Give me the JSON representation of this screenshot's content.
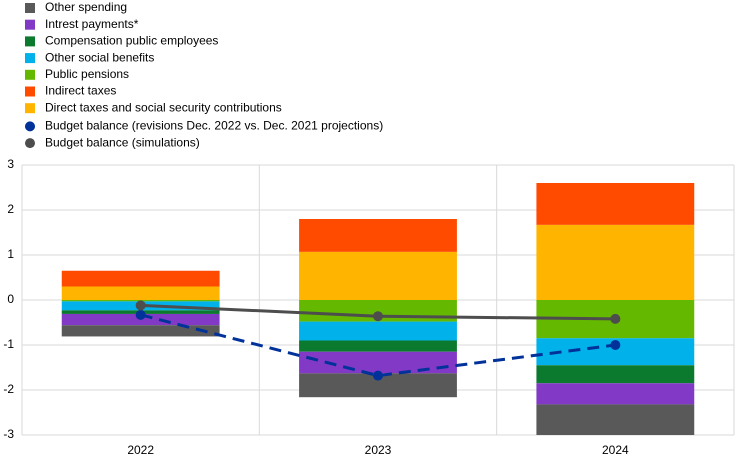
{
  "chart_data": {
    "type": "bar",
    "stacked": true,
    "categories": [
      "2022",
      "2023",
      "2024"
    ],
    "ylim": [
      -3,
      3
    ],
    "yticks": [
      -3,
      -2,
      -1,
      0,
      1,
      2,
      3
    ],
    "grid": true,
    "series": [
      {
        "name": "Other spending",
        "type": "bar",
        "color": "#595959",
        "values": [
          -0.25,
          -0.53,
          -0.68
        ]
      },
      {
        "name": "Intrest payments*",
        "type": "bar",
        "color": "#8139c6",
        "values": [
          -0.25,
          -0.48,
          -0.47
        ]
      },
      {
        "name": "Compensation public employees",
        "type": "bar",
        "color": "#0b7a2e",
        "values": [
          -0.08,
          -0.25,
          -0.4
        ]
      },
      {
        "name": "Other social benefits",
        "type": "bar",
        "color": "#00b1ea",
        "values": [
          -0.2,
          -0.42,
          -0.6
        ]
      },
      {
        "name": "Public pensions",
        "type": "bar",
        "color": "#65b800",
        "values": [
          -0.03,
          -0.48,
          -0.85
        ]
      },
      {
        "name": "Indirect taxes",
        "type": "bar",
        "color": "#ff4b00",
        "values": [
          0.35,
          0.73,
          0.93
        ]
      },
      {
        "name": "Direct taxes and social security contributions",
        "type": "bar",
        "color": "#ffb400",
        "values": [
          0.3,
          1.07,
          1.67
        ]
      },
      {
        "name": "Budget balance (revisions Dec. 2022 vs. Dec. 2021 projections)",
        "type": "line",
        "style": "dashed",
        "color": "#003299",
        "values": [
          -0.33,
          -1.68,
          -1.0
        ]
      },
      {
        "name": "Budget balance (simulations)",
        "type": "line",
        "style": "solid",
        "color": "#4d4d4d",
        "values": [
          -0.12,
          -0.36,
          -0.42
        ]
      }
    ]
  }
}
